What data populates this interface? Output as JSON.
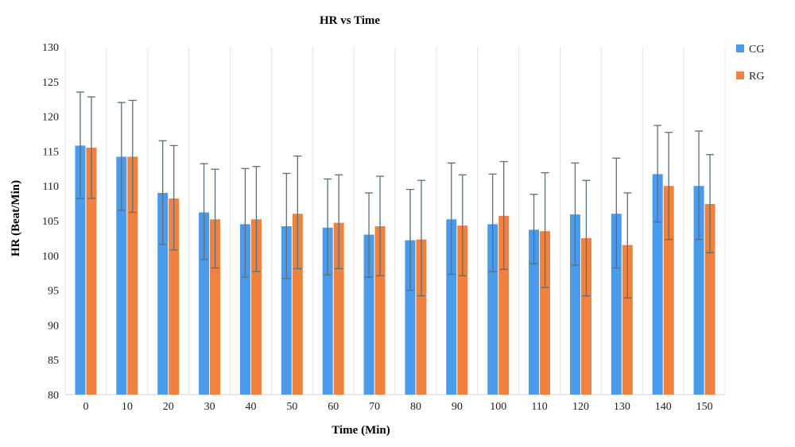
{
  "chart_data": {
    "type": "bar",
    "title": "HR vs Time",
    "xlabel": "Time (Min)",
    "ylabel": "HR (Beat/Min)",
    "ylim": [
      80,
      130
    ],
    "yticks": [
      80,
      85,
      90,
      95,
      100,
      105,
      110,
      115,
      120,
      125,
      130
    ],
    "grid": "vertical",
    "legend_position": "right",
    "categories": [
      "0",
      "10",
      "20",
      "30",
      "40",
      "50",
      "60",
      "70",
      "80",
      "90",
      "100",
      "110",
      "120",
      "130",
      "140",
      "150"
    ],
    "series": [
      {
        "name": "CG",
        "color": "#4a9bec",
        "values": [
          115.8,
          114.2,
          109.0,
          106.2,
          104.5,
          104.2,
          104.0,
          103.0,
          102.2,
          105.2,
          104.5,
          103.7,
          105.9,
          106.0,
          111.7,
          110.0
        ],
        "error_upper": [
          123.5,
          122.0,
          116.5,
          113.2,
          112.5,
          111.8,
          111.0,
          109.0,
          109.5,
          113.3,
          111.7,
          108.8,
          113.3,
          114.0,
          118.7,
          117.9
        ],
        "error_lower": [
          108.2,
          106.5,
          101.6,
          99.4,
          96.9,
          96.7,
          97.2,
          96.9,
          95.0,
          97.3,
          97.7,
          98.8,
          98.6,
          98.2,
          104.8,
          102.3
        ]
      },
      {
        "name": "RG",
        "color": "#f0813f",
        "values": [
          115.5,
          114.2,
          108.2,
          105.2,
          105.2,
          106.0,
          104.7,
          104.2,
          102.3,
          104.3,
          105.7,
          103.5,
          102.5,
          101.5,
          110.0,
          107.4
        ],
        "error_upper": [
          122.8,
          122.3,
          115.8,
          112.4,
          112.8,
          114.3,
          111.6,
          111.4,
          110.8,
          111.6,
          113.5,
          111.9,
          110.8,
          109.0,
          117.7,
          114.5
        ],
        "error_lower": [
          108.2,
          106.2,
          100.8,
          98.2,
          97.7,
          98.1,
          98.1,
          97.1,
          94.2,
          97.1,
          98.0,
          95.4,
          94.2,
          93.9,
          102.3,
          100.4
        ]
      }
    ]
  }
}
